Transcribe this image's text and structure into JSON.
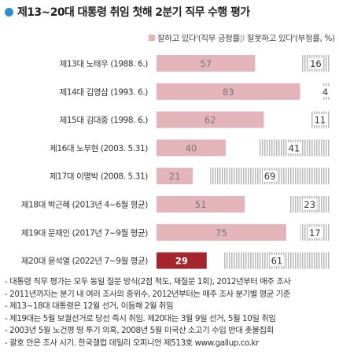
{
  "title": "제13~20대 대통령 취임 첫해 2분기 직무 수행 평가",
  "chart_data": {
    "type": "bar",
    "orientation": "horizontal",
    "stacked": true,
    "categories": [
      "제13대 노태우 (1988. 6.)",
      "제14대 김영삼 (1993. 6.)",
      "제15대 김대중 (1998. 6.)",
      "제16대 노무현 (2003. 5.31)",
      "제17대 이명박 (2008. 5.31)",
      "제18대 박근혜 (2013년 4~6월 평균)",
      "제19대 문재인 (2017년 7~9월 평균)",
      "제20대 윤석열 (2022년 7~9월 평균)"
    ],
    "series": [
      {
        "name": "잘하고 있다'(직무 긍정률)",
        "values": [
          57,
          83,
          62,
          40,
          21,
          51,
          75,
          29
        ],
        "color": "#e3b4ba"
      },
      {
        "name": "잘못하고 있다'(부정률, %)",
        "values": [
          16,
          4,
          11,
          41,
          69,
          23,
          17,
          61
        ],
        "color": "#bdbdbd"
      }
    ],
    "highlight": {
      "index": 7,
      "color": "#a4262c"
    },
    "xlim": [
      0,
      100
    ],
    "legend_position": "top-right",
    "grid": false
  },
  "notes": [
    "- 대통령 직무 평가는 모두 동일 질문 방식(2점 척도, 재질문 1회), 2012년부터 매주 조사",
    "- 2011년까지는 분기 내 여러 조사의 중위수, 2012년부터는 매주 조사 분기별 평균 기준",
    "- 제13~18대 대통령은 12월 선거, 이듬해 2월 취임",
    "- 제19대는 5월 보궐선거로 당선 즉시 취임. 제20대는 3월 9일 선거, 5월 10일 취임",
    "- 2003년 5월 노건평 땅 투기 의혹, 2008년 5월 미국산 소고기 수입 반대 촛불집회",
    "- 괄호 안은 조사 시기. 한국갤럽 데일리 오피니언 제513호 www.gallup.co.kr"
  ]
}
